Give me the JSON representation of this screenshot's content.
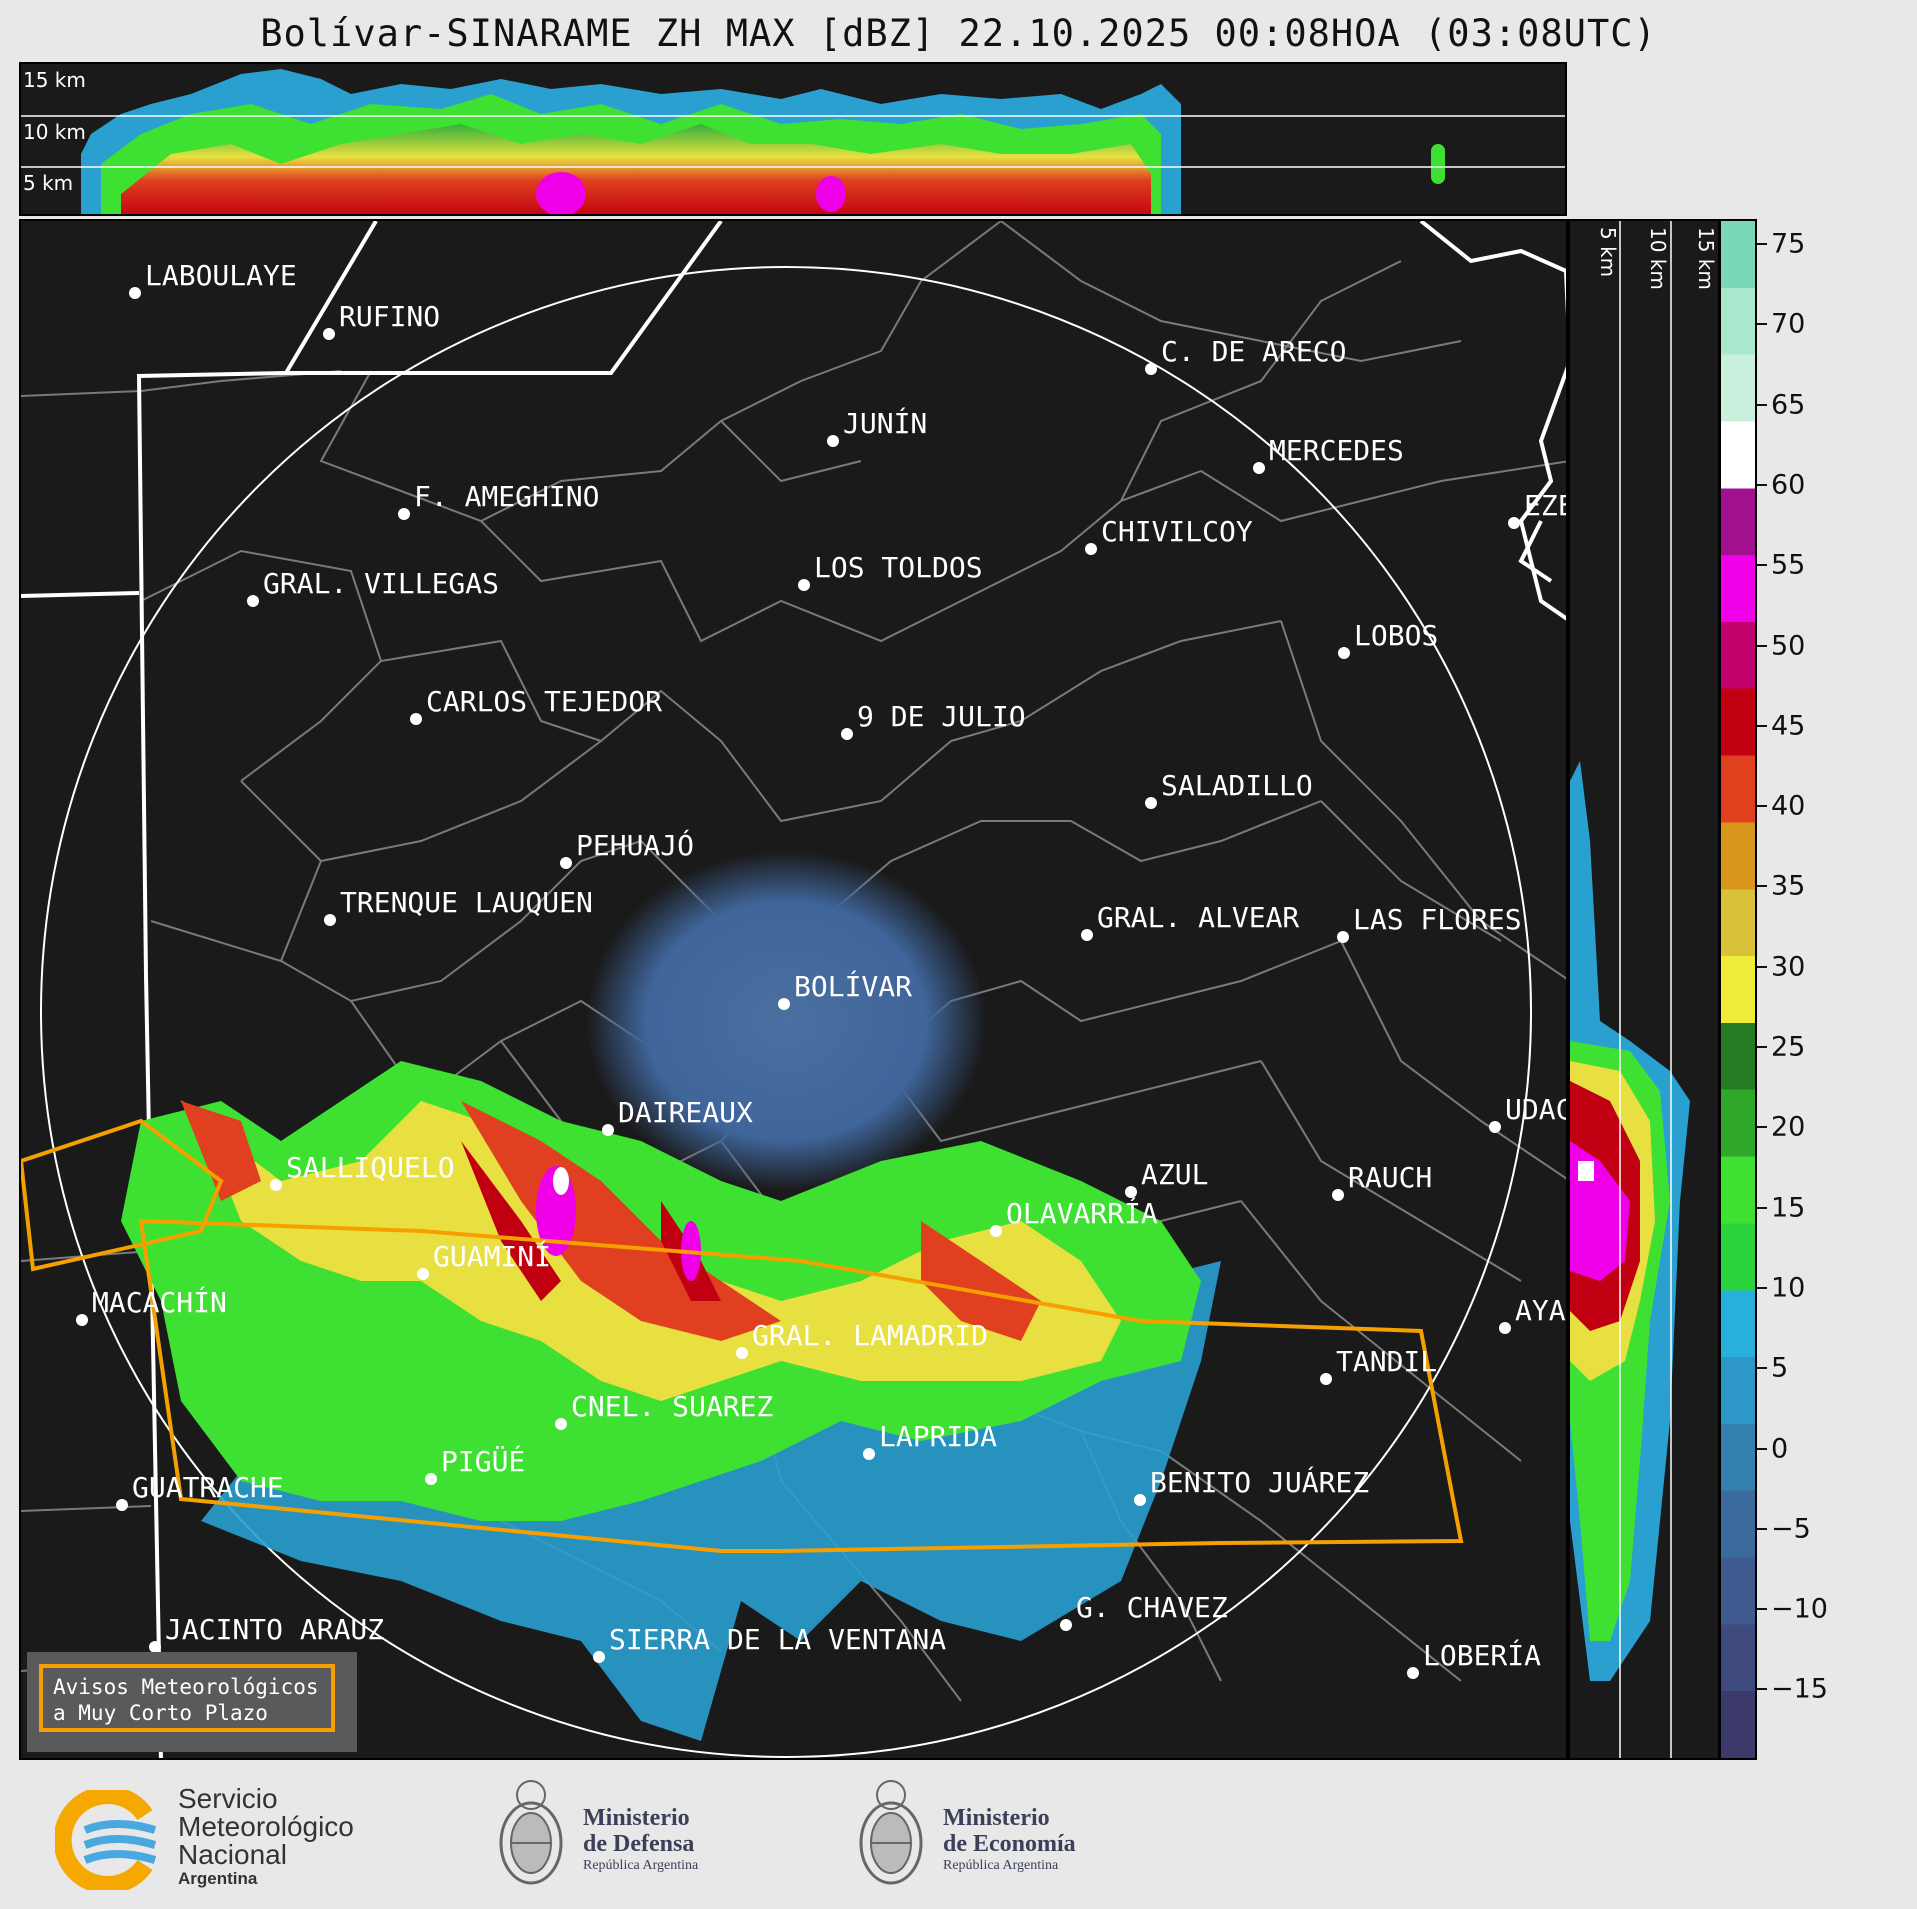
{
  "title": "Bolívar-SINARAME ZH MAX [dBZ] 22.10.2025 00:08HOA (03:08UTC)",
  "top_panel": {
    "height_labels": [
      "15 km",
      "10 km",
      "5 km"
    ]
  },
  "side_panel": {
    "height_labels": [
      "5 km",
      "10 km",
      "15 km"
    ]
  },
  "colorbar": {
    "unit": "dBZ",
    "ticks": [
      "75",
      "70",
      "65",
      "60",
      "55",
      "50",
      "45",
      "40",
      "35",
      "30",
      "25",
      "20",
      "15",
      "10",
      "5",
      "0",
      "−5",
      "−10",
      "−15"
    ],
    "range": [
      -20,
      77
    ],
    "colors": [
      "#3b3a6b",
      "#3f4a7e",
      "#3e5a8f",
      "#3a6b9c",
      "#3480b0",
      "#2d97c8",
      "#27b0dc",
      "#2bd33a",
      "#3ee032",
      "#2fa82a",
      "#257a22",
      "#f0ec3a",
      "#d9c23a",
      "#d8961c",
      "#e0401e",
      "#c00010",
      "#c0006b",
      "#f000e8",
      "#a0108f",
      "#ffffff",
      "#c8f0dc",
      "#a8e8cc",
      "#7ad8b8"
    ]
  },
  "map": {
    "cities": [
      "LABOULAYE",
      "RUFINO",
      "C. DE ARECO",
      "JUNÍN",
      "MERCEDES",
      "F. AMEGHINO",
      "CHIVILCOY",
      "EZE",
      "GRAL. VILLEGAS",
      "LOS TOLDOS",
      "LOBOS",
      "CARLOS TEJEDOR",
      "9 DE JULIO",
      "SALADILLO",
      "PEHUAJÓ",
      "TRENQUE LAUQUEN",
      "GRAL. ALVEAR",
      "LAS FLORES",
      "BOLÍVAR",
      "DAIREAUX",
      "UDAC",
      "SALLIQUELO",
      "AZUL",
      "RAUCH",
      "OLAVARRÍA",
      "GUAMINÍ",
      "MACACHÍN",
      "AYA",
      "GRAL. LAMADRID",
      "TANDIL",
      "CNEL. SUAREZ",
      "LAPRIDA",
      "PIGÜÉ",
      "GUATRACHE",
      "BENITO JUÁREZ",
      "G. CHAVEZ",
      "JACINTO ARAUZ",
      "SIERRA DE LA VENTANA",
      "LOBERÍA"
    ]
  },
  "warning_box": {
    "line1": "Avisos Meteorológicos",
    "line2": "a Muy Corto Plazo"
  },
  "footer": {
    "smn": {
      "line1": "Servicio",
      "line2": "Meteorológico",
      "line3": "Nacional",
      "line4": "Argentina",
      "icon": "smn-logo-icon"
    },
    "defensa": {
      "line1": "Ministerio",
      "line2": "de Defensa",
      "line3": "República Argentina",
      "icon": "argentina-coat-of-arms-icon"
    },
    "economia": {
      "line1": "Ministerio",
      "line2": "de Economía",
      "line3": "República Argentina",
      "icon": "argentina-coat-of-arms-icon"
    }
  },
  "colors": {
    "panel_bg": "#1a1a1a",
    "province_border": "#ffffff",
    "county_border": "#7a7a7a",
    "warning_polygon": "#f5a000",
    "range_ring": "#ffffff"
  }
}
